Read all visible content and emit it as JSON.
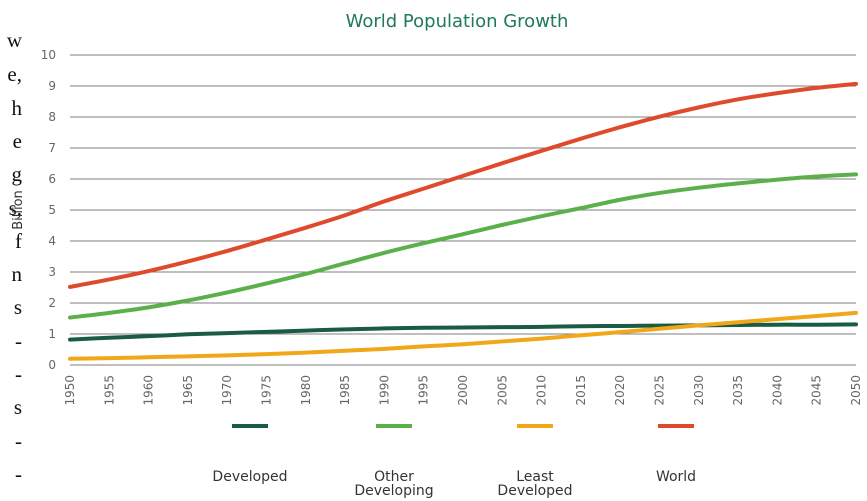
{
  "cutoff_text": [
    "w",
    "e,",
    "h",
    "e",
    "g",
    "s,",
    "f",
    "n",
    "s",
    "-",
    "-",
    "s",
    "-",
    "-"
  ],
  "chart_data": {
    "type": "line",
    "title": "World Population Growth",
    "xlabel": "",
    "ylabel": "Billion",
    "x": [
      1950,
      1955,
      1960,
      1965,
      1970,
      1975,
      1980,
      1985,
      1990,
      1995,
      2000,
      2005,
      2010,
      2015,
      2020,
      2025,
      2030,
      2035,
      2040,
      2045,
      2050
    ],
    "xticks": [
      "1950",
      "1955",
      "1960",
      "1965",
      "1970",
      "1975",
      "1980",
      "1985",
      "1990",
      "1995",
      "2000",
      "2005",
      "2010",
      "2015",
      "2020",
      "2025",
      "2030",
      "2035",
      "2040",
      "2045",
      "2050"
    ],
    "yticks": [
      "0",
      "1",
      "2",
      "3",
      "4",
      "5",
      "6",
      "7",
      "8",
      "9",
      "10"
    ],
    "ylim": [
      0,
      10
    ],
    "xlim": [
      1950,
      2050
    ],
    "grid": true,
    "legend_position": "bottom",
    "series": [
      {
        "name": "Developed",
        "legend_lines": [
          "Developed"
        ],
        "color": "#1a5c43",
        "values": [
          0.82,
          0.88,
          0.93,
          0.99,
          1.03,
          1.07,
          1.11,
          1.15,
          1.18,
          1.2,
          1.21,
          1.22,
          1.23,
          1.25,
          1.26,
          1.27,
          1.28,
          1.29,
          1.3,
          1.3,
          1.31
        ]
      },
      {
        "name": "Other Developing",
        "legend_lines": [
          "Other",
          "Developing"
        ],
        "color": "#5cb04a",
        "values": [
          1.53,
          1.68,
          1.86,
          2.08,
          2.34,
          2.63,
          2.94,
          3.28,
          3.62,
          3.93,
          4.22,
          4.52,
          4.8,
          5.06,
          5.33,
          5.55,
          5.72,
          5.86,
          5.98,
          6.08,
          6.15
        ]
      },
      {
        "name": "Least Developed",
        "legend_lines": [
          "Least",
          "Developed"
        ],
        "color": "#f0a81a",
        "values": [
          0.2,
          0.22,
          0.25,
          0.28,
          0.31,
          0.35,
          0.4,
          0.46,
          0.52,
          0.6,
          0.67,
          0.76,
          0.85,
          0.96,
          1.06,
          1.17,
          1.28,
          1.38,
          1.48,
          1.58,
          1.68
        ]
      },
      {
        "name": "World",
        "legend_lines": [
          "World"
        ],
        "color": "#e04a2c",
        "values": [
          2.52,
          2.76,
          3.03,
          3.34,
          3.68,
          4.05,
          4.43,
          4.83,
          5.28,
          5.69,
          6.1,
          6.51,
          6.91,
          7.3,
          7.67,
          8.01,
          8.31,
          8.57,
          8.77,
          8.94,
          9.07
        ]
      }
    ]
  }
}
